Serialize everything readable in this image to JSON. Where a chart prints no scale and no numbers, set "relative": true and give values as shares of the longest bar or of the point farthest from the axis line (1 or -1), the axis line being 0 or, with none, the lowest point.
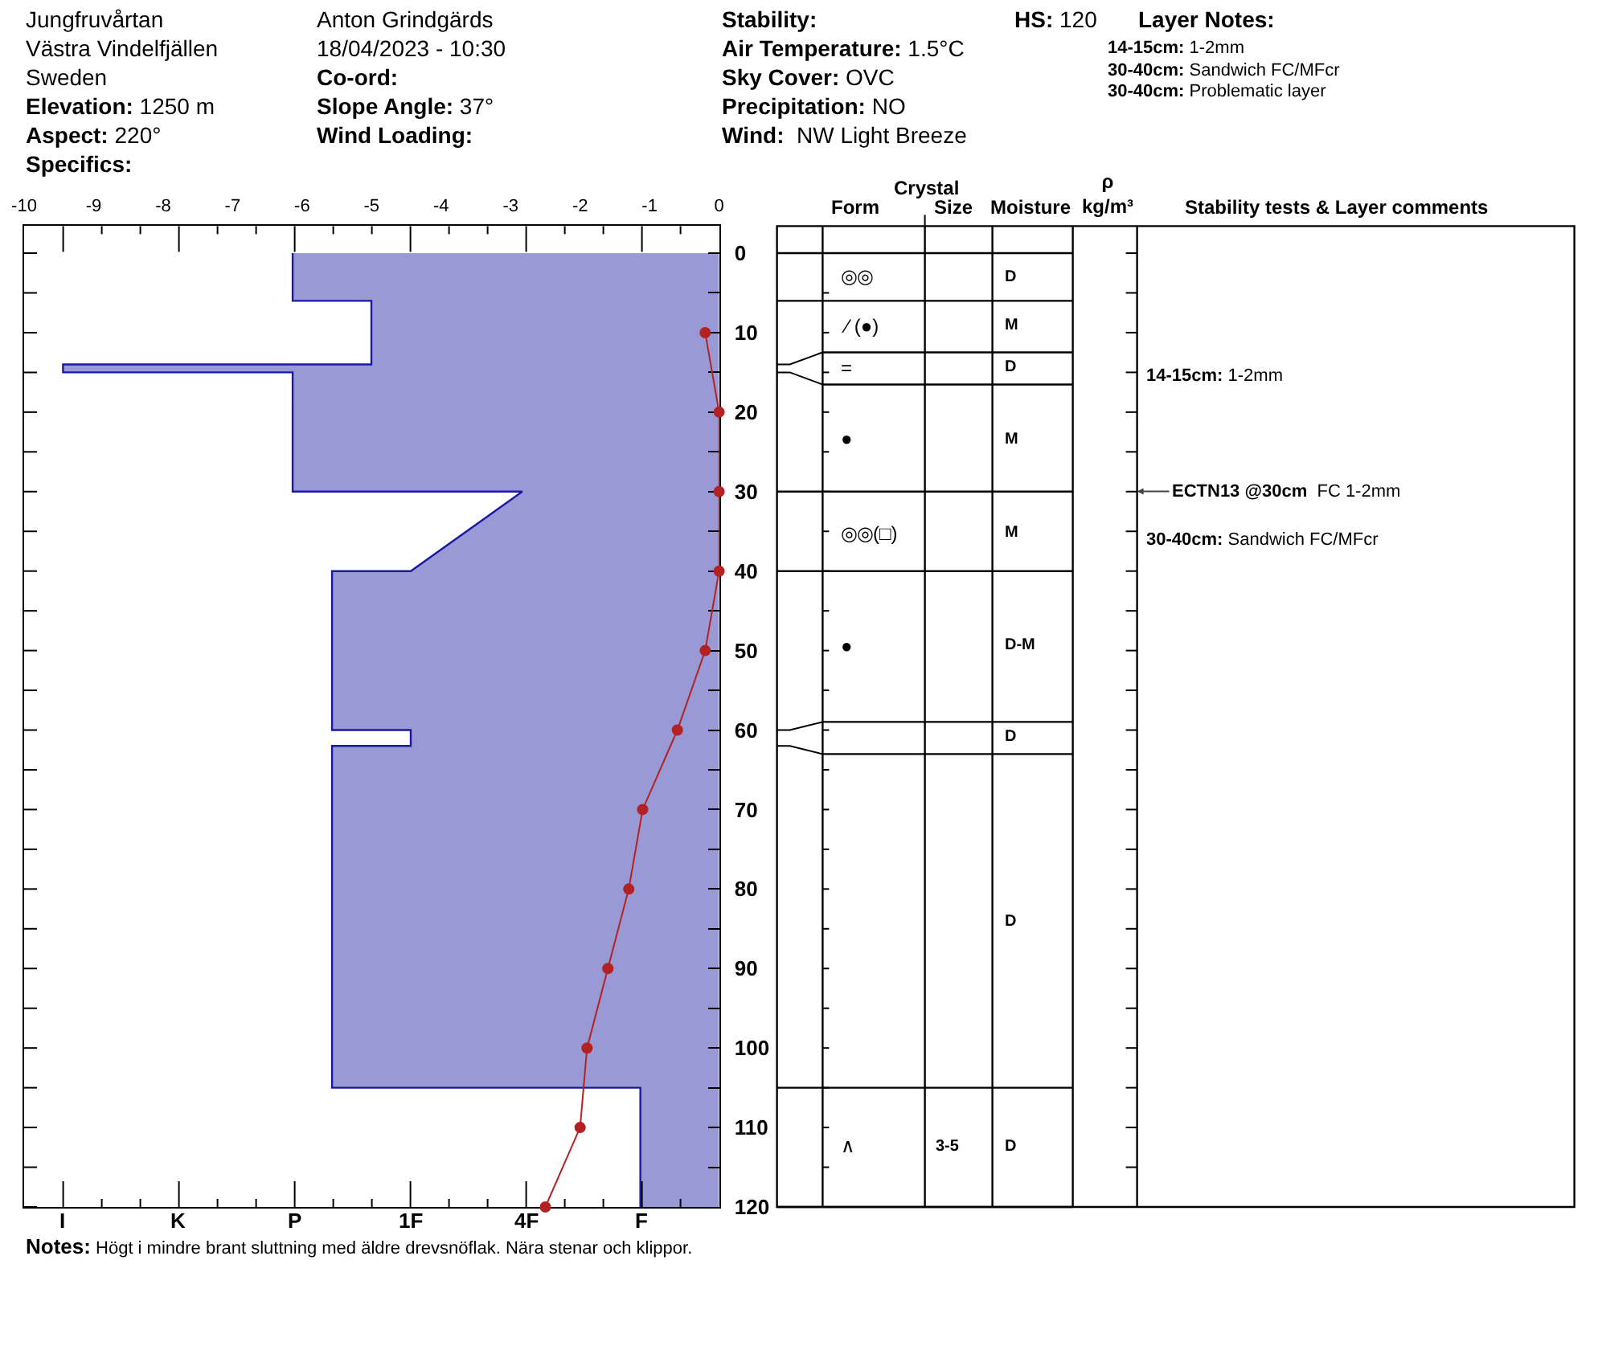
{
  "chart_data": [
    {
      "type": "area",
      "orientation": "horizontal",
      "relative": true,
      "series": [
        {
          "color": "#9999d6",
          "x": [
            0,
            6,
            6,
            14,
            14,
            15,
            15,
            30,
            30,
            40,
            40,
            60,
            60,
            62,
            62,
            105,
            105,
            120
          ],
          "values": [
            -0.65,
            -0.65,
            -0.53,
            -0.53,
            -1,
            -1,
            -0.65,
            -0.65,
            -0.3,
            -0.47,
            -0.59,
            -0.59,
            -0.47,
            -0.47,
            -0.59,
            -0.59,
            -0.12,
            -0.12
          ]
        }
      ],
      "ylim": [
        120,
        -3.4
      ],
      "yticks": [
        0,
        {
          "value": 5,
          "label": null
        },
        10,
        {
          "value": 15,
          "label": null
        },
        20,
        {
          "value": 25,
          "label": null
        },
        30,
        {
          "value": 35,
          "label": null
        },
        40,
        {
          "value": 45,
          "label": null
        },
        50,
        {
          "value": 55,
          "label": null
        },
        60,
        {
          "value": 65,
          "label": null
        },
        70,
        {
          "value": 75,
          "label": null
        },
        80,
        {
          "value": 85,
          "label": null
        },
        90,
        {
          "value": 95,
          "label": null
        },
        100,
        {
          "value": 105,
          "label": null
        },
        110,
        {
          "value": 115,
          "label": null
        },
        120
      ],
      "annotations": [
        "Jungfruvårtan",
        "Västra Vindelfjällen",
        "Sweden",
        "Elevation: 1250 m",
        "Aspect: 220°",
        "Specifics:",
        "Anton Grindgärds",
        "18/04/2023 - 10:30",
        "Co-ord:",
        "Slope Angle: 37°",
        "Wind Loading:",
        "Stability:",
        "Air Temperature: 1.5°C",
        "Sky Cover: OVC",
        "Precipitation: NO",
        "Wind:  NW Light Breeze",
        "HS: 120",
        "Layer Notes:",
        "14-15cm: 1-2mm",
        "30-40cm: Sandwich FC/MFcr",
        "30-40cm: Problematic layer",
        "I",
        "K",
        "P",
        "1F",
        "4F",
        "F",
        "Notes: Högt i mindre brant sluttning med äldre drevsnöflak. Nära stenar och klippor."
      ]
    },
    {
      "type": "line",
      "orientation": "horizontal",
      "series": [
        {
          "color": "#b22222",
          "marker": "circle",
          "x": [
            10,
            20,
            30,
            40,
            50,
            60,
            70,
            80,
            90,
            100,
            110,
            120
          ],
          "values": [
            -0.2,
            0,
            0,
            0,
            -0.2,
            -0.6,
            -1.1,
            -1.3,
            -1.6,
            -1.9,
            -2.0,
            -2.5
          ]
        }
      ],
      "xlim": [
        -10,
        0
      ],
      "xticks": [
        -10,
        -9,
        -8,
        -7,
        -6,
        -5,
        -4,
        -3,
        -2,
        -1,
        0
      ],
      "ylim": [
        120,
        -3.4
      ],
      "tick_labels": "x"
    },
    {
      "type": "other",
      "annotations": [
        "Crystal",
        "Form",
        "Size",
        "Moisture",
        "ρ\nkg/m³",
        "Stability tests & Layer comments",
        "◎◎",
        "D",
        "⁄ (●)",
        "M",
        "=",
        "D",
        "14-15cm: 1-2mm",
        "●",
        "M",
        "ECTN13 @30cm  FC 1-2mm",
        "◎◎(□)",
        "M",
        "30-40cm: Sandwich FC/MFcr",
        "●",
        "D-M",
        "D",
        "D",
        "∧",
        "3-5",
        "D"
      ]
    }
  ]
}
